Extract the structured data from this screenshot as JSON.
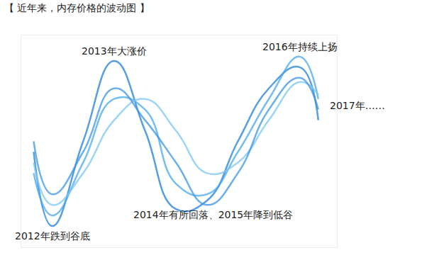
{
  "chart_data": {
    "type": "line",
    "title": "【 近年来，内存价格的波动图 】",
    "x": [
      2011.7,
      2012.0,
      2012.5,
      2013.0,
      2013.5,
      2014.0,
      2014.5,
      2015.0,
      2015.5,
      2016.0,
      2016.3
    ],
    "series": [
      {
        "color": "#1f7fd8",
        "values": [
          45,
          10,
          50,
          88,
          55,
          18,
          22,
          50,
          75,
          85,
          60
        ]
      },
      {
        "color": "#4aa8ec",
        "values": [
          35,
          15,
          40,
          70,
          65,
          30,
          25,
          45,
          70,
          90,
          70
        ]
      },
      {
        "color": "#7cc7f2",
        "values": [
          40,
          20,
          35,
          60,
          70,
          55,
          35,
          40,
          60,
          78,
          72
        ]
      },
      {
        "color": "#3b95e3",
        "values": [
          50,
          25,
          45,
          75,
          60,
          40,
          20,
          35,
          65,
          80,
          65
        ]
      }
    ],
    "annotations": [
      {
        "text": "2012年跌到谷底",
        "x": 2012.0
      },
      {
        "text": "2013年大涨价",
        "x": 2013.0
      },
      {
        "text": "2014年有所回落、2015年降到低谷",
        "x": 2014.6
      },
      {
        "text": "2016年持续上扬",
        "x": 2016.0
      },
      {
        "text": "2017年……",
        "x": 2016.3
      }
    ],
    "xlim": [
      2011.5,
      2016.6
    ],
    "ylim": [
      0,
      100
    ],
    "grid": false,
    "tick_labels": false,
    "line_style": "spline"
  }
}
